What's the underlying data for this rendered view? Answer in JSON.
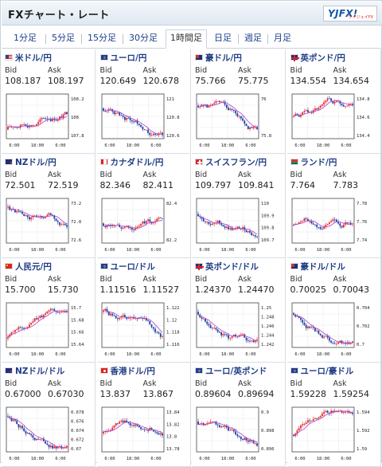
{
  "header": {
    "title": "FXチャート・レート",
    "logo": "YJFX!",
    "logo_sub": "ワイジェイFX"
  },
  "tabs": [
    {
      "label": "1分足",
      "active": false
    },
    {
      "label": "5分足",
      "active": false
    },
    {
      "label": "15分足",
      "active": false
    },
    {
      "label": "30分足",
      "active": false
    },
    {
      "label": "1時間足",
      "active": true
    },
    {
      "label": "日足",
      "active": false
    },
    {
      "label": "週足",
      "active": false
    },
    {
      "label": "月足",
      "active": false
    }
  ],
  "labels": {
    "bid": "Bid",
    "ask": "Ask"
  },
  "pairs": [
    {
      "name": "米ドル/円",
      "flag": "us",
      "bid": "108.187",
      "ask": "108.197",
      "yticks": [
        "108.2",
        "108",
        "107.8"
      ],
      "xticks": [
        "6:00",
        "18:00",
        "6:00"
      ]
    },
    {
      "name": "ユーロ/円",
      "flag": "eu",
      "bid": "120.649",
      "ask": "120.678",
      "yticks": [
        "121",
        "120.8",
        "120.6"
      ],
      "xticks": [
        "6:00",
        "18:00",
        "6:00"
      ]
    },
    {
      "name": "豪ドル/円",
      "flag": "au",
      "bid": "75.766",
      "ask": "75.775",
      "yticks": [
        "76",
        "75.8"
      ],
      "xticks": [
        "6:00",
        "18:00",
        "6:00"
      ]
    },
    {
      "name": "英ポンド/円",
      "flag": "gb",
      "bid": "134.554",
      "ask": "134.654",
      "yticks": [
        "134.8",
        "134.6",
        "134.4"
      ],
      "xticks": [
        "6:00",
        "18:00",
        "6:00"
      ]
    },
    {
      "name": "NZドル/円",
      "flag": "nz",
      "bid": "72.501",
      "ask": "72.519",
      "yticks": [
        "73.2",
        "72.8",
        "72.6"
      ],
      "xticks": [
        "6:00",
        "18:00",
        "6:00"
      ]
    },
    {
      "name": "カナダドル/円",
      "flag": "ca",
      "bid": "82.346",
      "ask": "82.411",
      "yticks": [
        "82.4",
        "82.2"
      ],
      "xticks": [
        "6:00",
        "18:00",
        "6:00"
      ]
    },
    {
      "name": "スイスフラン/円",
      "flag": "ch",
      "bid": "109.797",
      "ask": "109.841",
      "yticks": [
        "110",
        "109.9",
        "109.8",
        "109.7"
      ],
      "xticks": [
        "6:00",
        "18:00",
        "6:00"
      ]
    },
    {
      "name": "ランド/円",
      "flag": "za",
      "bid": "7.764",
      "ask": "7.783",
      "yticks": [
        "7.78",
        "7.76",
        "7.74"
      ],
      "xticks": [
        "6:00",
        "18:00",
        "6:00"
      ]
    },
    {
      "name": "人民元/円",
      "flag": "cn",
      "bid": "15.700",
      "ask": "15.730",
      "yticks": [
        "15.7",
        "15.68",
        "15.66",
        "15.64"
      ],
      "xticks": [
        "6:00",
        "18:00",
        "6:00"
      ]
    },
    {
      "name": "ユーロ/ドル",
      "flag": "eu",
      "bid": "1.11516",
      "ask": "1.11527",
      "yticks": [
        "1.122",
        "1.12",
        "1.118",
        "1.116"
      ],
      "xticks": [
        "6:00",
        "18:00",
        "6:00"
      ]
    },
    {
      "name": "英ポンド/ドル",
      "flag": "gb",
      "bid": "1.24370",
      "ask": "1.24470",
      "yticks": [
        "1.25",
        "1.248",
        "1.246",
        "1.244",
        "1.242"
      ],
      "xticks": [
        "6:00",
        "18:00",
        "6:00"
      ]
    },
    {
      "name": "豪ドル/ドル",
      "flag": "au",
      "bid": "0.70025",
      "ask": "0.70043",
      "yticks": [
        "0.704",
        "0.702",
        "0.7"
      ],
      "xticks": [
        "6:00",
        "18:00",
        "6:00"
      ]
    },
    {
      "name": "NZドル/ドル",
      "flag": "nz",
      "bid": "0.67000",
      "ask": "0.67030",
      "yticks": [
        "0.678",
        "0.676",
        "0.674",
        "0.672",
        "0.67"
      ],
      "xticks": [
        "6:00",
        "18:00",
        "6:00"
      ]
    },
    {
      "name": "香港ドル/円",
      "flag": "hk",
      "bid": "13.837",
      "ask": "13.867",
      "yticks": [
        "13.84",
        "13.82",
        "13.8",
        "13.78"
      ],
      "xticks": [
        "6:00",
        "18:00",
        "6:00"
      ]
    },
    {
      "name": "ユーロ/英ポンド",
      "flag": "eu",
      "bid": "0.89604",
      "ask": "0.89694",
      "yticks": [
        "0.9",
        "0.898",
        "0.896"
      ],
      "xticks": [
        "6:00",
        "18:00",
        "6:00"
      ]
    },
    {
      "name": "ユーロ/豪ドル",
      "flag": "eu",
      "bid": "1.59228",
      "ask": "1.59254",
      "yticks": [
        "1.594",
        "1.592",
        "1.59"
      ],
      "xticks": [
        "6:00",
        "18:00",
        "6:00"
      ]
    }
  ],
  "colors": {
    "up": "#e8262b",
    "down": "#1c3fa6",
    "ma": "#b040c8",
    "grid": "#cfcfcf",
    "link": "#1e3c86"
  }
}
